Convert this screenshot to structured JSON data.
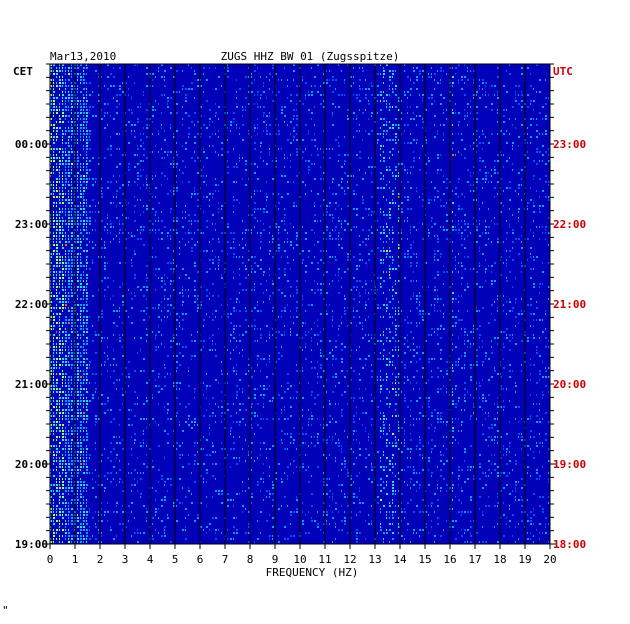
{
  "header": {
    "date": "Mar13,2010",
    "station": "ZUGS HHZ BW 01 (Zugsspitze)",
    "left_tz": "CET",
    "right_tz": "UTC"
  },
  "footer": {
    "mark": "\""
  },
  "colors": {
    "background": "#0000b8",
    "utc_text": "#cc0000",
    "frame": "#000000",
    "hot": [
      "#0050ff",
      "#00a0ff",
      "#20e0ff",
      "#a0ff60",
      "#ffe000",
      "#ff6000"
    ]
  },
  "chart_data": {
    "type": "heatmap",
    "title": "ZUGS HHZ BW 01 (Zugsspitze)",
    "xlabel": "FREQUENCY (HZ)",
    "xlim": [
      0,
      20
    ],
    "x_ticks": [
      "0",
      "1",
      "2",
      "3",
      "4",
      "5",
      "6",
      "7",
      "8",
      "9",
      "10",
      "11",
      "12",
      "13",
      "14",
      "15",
      "16",
      "17",
      "18",
      "19",
      "20"
    ],
    "y_ticks_left": [
      "00:00",
      "23:00",
      "22:00",
      "21:00",
      "20:00",
      "19:00"
    ],
    "y_ticks_right": [
      "23:00",
      "22:00",
      "21:00",
      "20:00",
      "19:00",
      "18:00"
    ],
    "features": [
      {
        "name": "low-frequency energy",
        "freq_range": [
          0,
          1.5
        ]
      },
      {
        "name": "persistent line",
        "freq_range": [
          13.2,
          14.0
        ]
      },
      {
        "name": "narrow line",
        "freq_range": [
          16,
          16.1
        ]
      }
    ]
  }
}
